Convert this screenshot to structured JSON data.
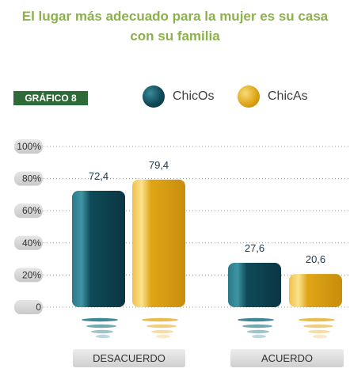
{
  "title_line1": "El lugar más adecuado para la mujer es su casa",
  "title_line2": "con su familia",
  "badge": "GRÁFICO 8",
  "legend": [
    {
      "label": "ChicOs",
      "color": "#0f4a58"
    },
    {
      "label": "ChicAs",
      "color": "#e0a517"
    }
  ],
  "chart_data": {
    "type": "bar",
    "categories": [
      "DESACUERDO",
      "ACUERDO"
    ],
    "series": [
      {
        "name": "ChicOs",
        "values": [
          72.4,
          27.6
        ],
        "labels": [
          "72,4",
          "27,6"
        ]
      },
      {
        "name": "ChicAs",
        "values": [
          79.4,
          20.6
        ],
        "labels": [
          "79,4",
          "20,6"
        ]
      }
    ],
    "yticks": [
      "0",
      "20%",
      "40%",
      "60%",
      "80%",
      "100%"
    ],
    "ylim": [
      0,
      100
    ],
    "legend_position": "top-right"
  }
}
